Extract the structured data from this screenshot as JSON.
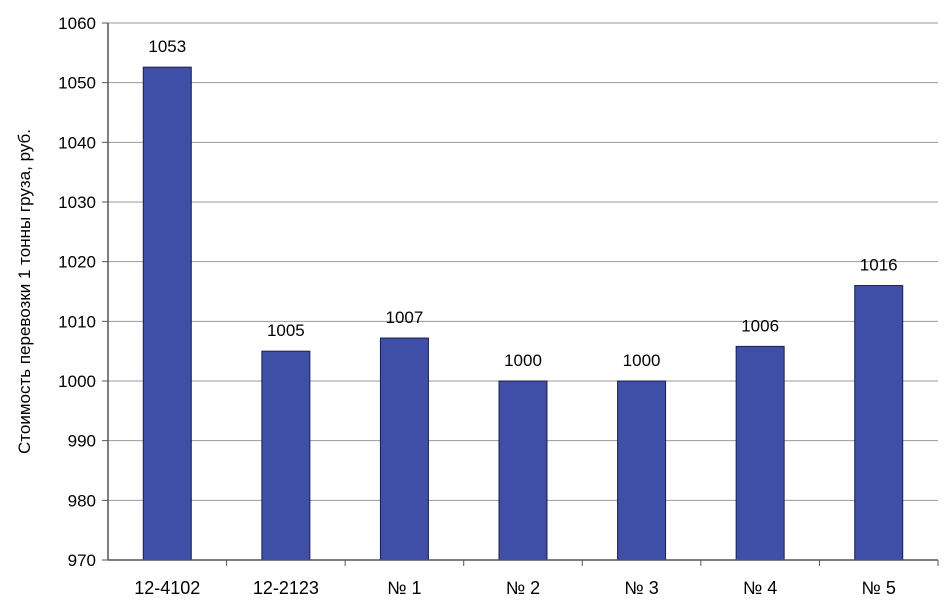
{
  "chart_data": {
    "type": "bar",
    "title": "",
    "xlabel": "",
    "ylabel": "Стоимость перевозки 1 тонны груза, руб.",
    "categories": [
      "12-4102",
      "12-2123",
      "№ 1",
      "№ 2",
      "№ 3",
      "№ 4",
      "№ 5"
    ],
    "values": [
      1052.6,
      1005,
      1007.2,
      1000,
      1000,
      1005.8,
      1016
    ],
    "data_labels": [
      "1053",
      "1005",
      "1007",
      "1000",
      "1000",
      "1006",
      "1016"
    ],
    "ylim": [
      970,
      1060
    ],
    "yticks": [
      970,
      980,
      990,
      1000,
      1010,
      1020,
      1030,
      1040,
      1050,
      1060
    ],
    "grid": true,
    "legend": "none",
    "colors": {
      "bar_fill": "#3f4fa8",
      "bar_stroke": "#1a1f4d",
      "grid": "#9a9a9a",
      "axis": "#555555",
      "text": "#000000"
    }
  }
}
